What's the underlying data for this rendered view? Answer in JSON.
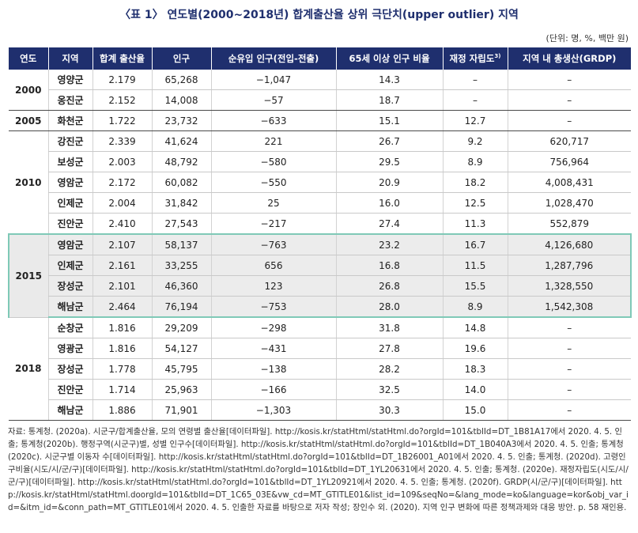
{
  "title": "〈표 1〉 연도별(2000~2018년) 합계출산율 상위 극단치(upper outlier) 지역",
  "unit_note": "(단위: 명, %, 백만 원)",
  "headers": [
    "연도",
    "지역",
    "합계 출산율",
    "인구",
    "순유입 인구(전입-전출)",
    "65세 이상 인구 비율",
    "재정 자립도",
    "지역 내 총생산(GRDP)"
  ],
  "header_superscript": "3)",
  "groups": [
    {
      "year": "2000",
      "rows": [
        [
          "영양군",
          "2.179",
          "65,268",
          "−1,047",
          "14.3",
          "–",
          "–"
        ],
        [
          "옹진군",
          "2.152",
          "14,008",
          "−57",
          "18.7",
          "–",
          "–"
        ]
      ]
    },
    {
      "year": "2005",
      "rows": [
        [
          "화천군",
          "1.722",
          "23,732",
          "−633",
          "15.1",
          "12.7",
          "–"
        ]
      ]
    },
    {
      "year": "2010",
      "rows": [
        [
          "강진군",
          "2.339",
          "41,624",
          "221",
          "26.7",
          "9.2",
          "620,717"
        ],
        [
          "보성군",
          "2.003",
          "48,792",
          "−580",
          "29.5",
          "8.9",
          "756,964"
        ],
        [
          "영암군",
          "2.172",
          "60,082",
          "−550",
          "20.9",
          "18.2",
          "4,008,431"
        ],
        [
          "인제군",
          "2.004",
          "31,842",
          "25",
          "16.0",
          "12.5",
          "1,028,470"
        ],
        [
          "진안군",
          "2.410",
          "27,543",
          "−217",
          "27.4",
          "11.3",
          "552,879"
        ]
      ]
    },
    {
      "year": "2015",
      "rows": [
        [
          "영암군",
          "2.107",
          "58,137",
          "−763",
          "23.2",
          "16.7",
          "4,126,680"
        ],
        [
          "인제군",
          "2.161",
          "33,255",
          "656",
          "16.8",
          "11.5",
          "1,287,796"
        ],
        [
          "장성군",
          "2.101",
          "46,360",
          "123",
          "26.8",
          "15.5",
          "1,328,550"
        ],
        [
          "해남군",
          "2.464",
          "76,194",
          "−753",
          "28.0",
          "8.9",
          "1,542,308"
        ]
      ]
    },
    {
      "year": "2018",
      "rows": [
        [
          "순창군",
          "1.816",
          "29,209",
          "−298",
          "31.8",
          "14.8",
          "–"
        ],
        [
          "영광군",
          "1.816",
          "54,127",
          "−431",
          "27.8",
          "19.6",
          "–"
        ],
        [
          "장성군",
          "1.778",
          "45,795",
          "−138",
          "28.2",
          "18.3",
          "–"
        ],
        [
          "진안군",
          "1.714",
          "25,963",
          "−166",
          "32.5",
          "14.0",
          "–"
        ],
        [
          "해남군",
          "1.886",
          "71,901",
          "−1,303",
          "30.3",
          "15.0",
          "–"
        ]
      ]
    }
  ],
  "source": "자료: 통계청. (2020a). 시군구/합계출산율, 모의 연령별 출산율[데이터파일]. http://kosis.kr/statHtml/statHtml.do?orgId=101&tblId=DT_1B81A17에서 2020. 4. 5. 인출; 통계청(2020b). 행정구역(시군구)별, 성별 인구수[데이터파일]. http://kosis.kr/statHtml/statHtml.do?orgId=101&tblId=DT_1B040A3에서 2020. 4. 5. 인출; 통계청(2020c). 시군구별 이동자 수[데이터파일]. http://kosis.kr/statHtml/statHtml.do?orgId=101&tblId=DT_1B26001_A01에서 2020. 4. 5. 인출; 통계청. (2020d). 고령인구비율(시도/시/군/구)[데이터파일]. http://kosis.kr/statHtml/statHtml.do?orgId=101&tblId=DT_1YL20631에서 2020. 4. 5. 인출; 통계청. (2020e). 재정자립도(시도/시/군/구)[데이터파일]. http://kosis.kr/statHtml/statHtml.do?orgId=101&tblId=DT_1YL20921에서 2020. 4. 5. 인출; 통계청. (2020f). GRDP(시/군/구)[데이터파일]. http://kosis.kr/statHtml/statHtml.doorgId=101&tblId=DT_1C65_03E&vw_cd=MT_GTITLE01&list_id=109&seqNo=&lang_mode=ko&language=kor&obj_var_id=&itm_id=&conn_path=MT_GTITLE01에서 2020. 4. 5. 인출한 자료를 바탕으로 저자 작성; 장인수 외. (2020). 지역 인구 변화에 따른 정책과제와 대응 방안. p. 58 재인용."
}
